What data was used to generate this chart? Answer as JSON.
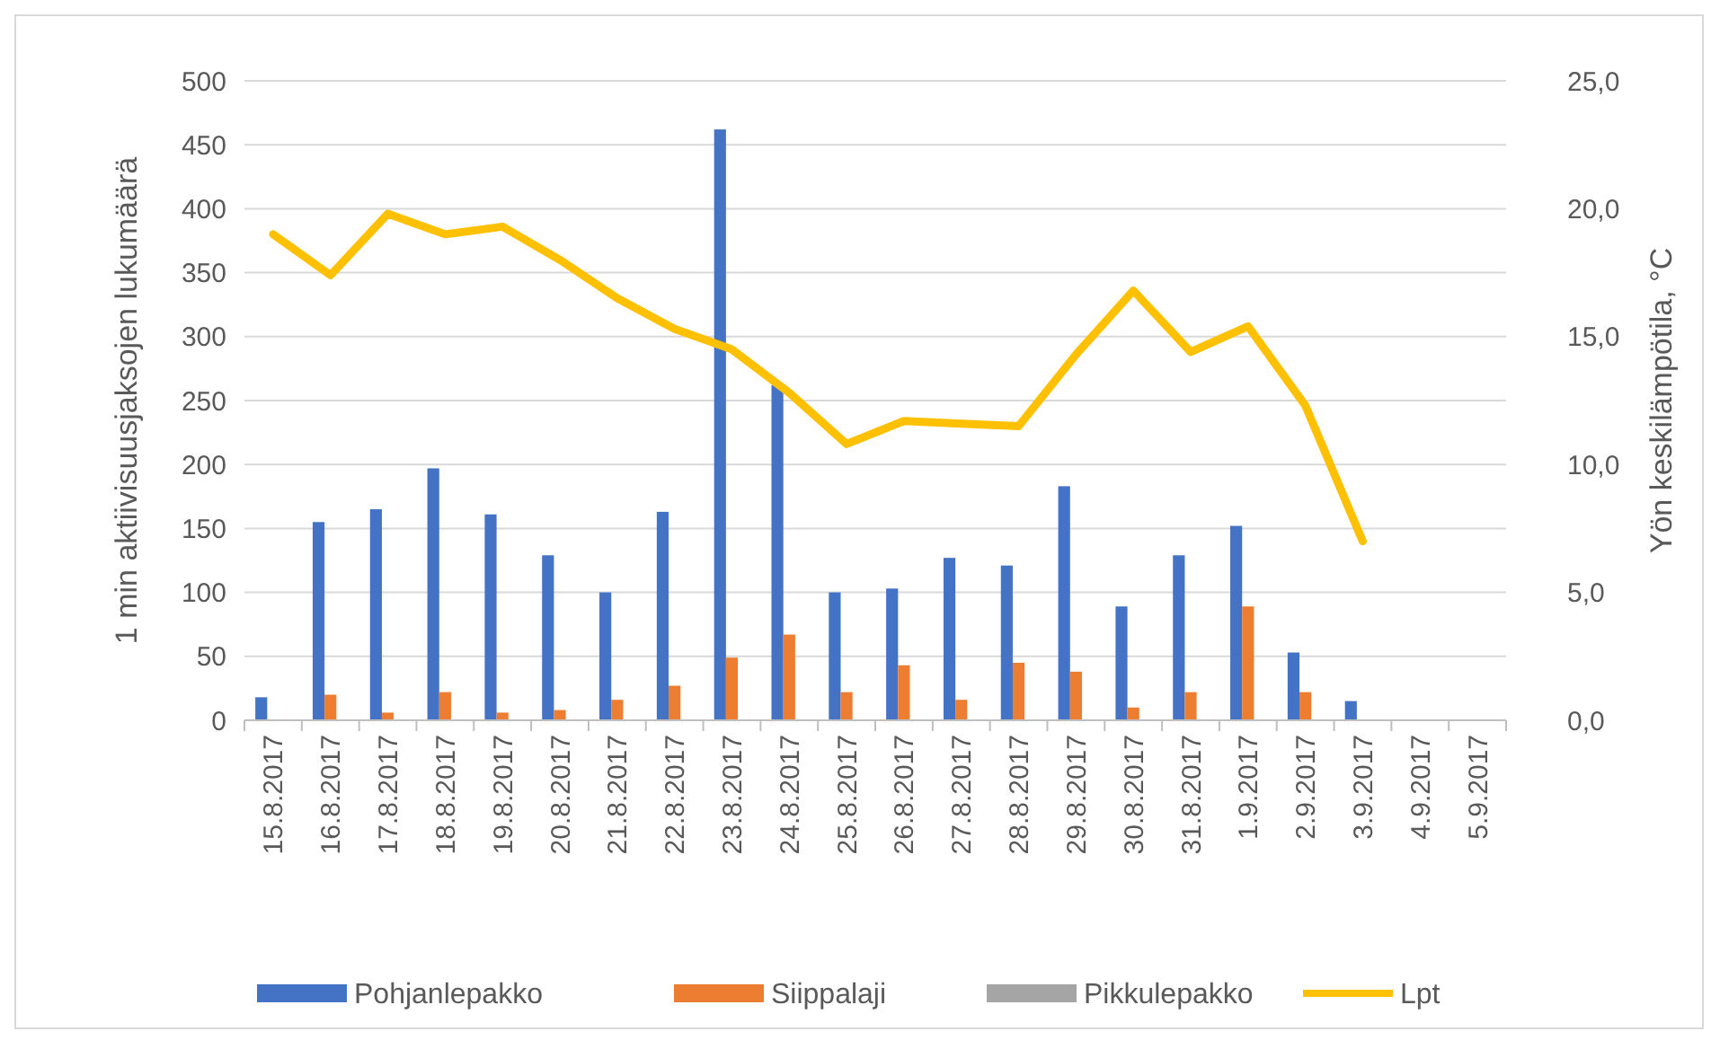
{
  "chart_data": {
    "type": "bar",
    "ylabel": "1 min aktiivisuusjaksojen lukumäärä",
    "y2label": "Yön keskilämpötila, °C",
    "categories": [
      "15.8.2017",
      "16.8.2017",
      "17.8.2017",
      "18.8.2017",
      "19.8.2017",
      "20.8.2017",
      "21.8.2017",
      "22.8.2017",
      "23.8.2017",
      "24.8.2017",
      "25.8.2017",
      "26.8.2017",
      "27.8.2017",
      "28.8.2017",
      "29.8.2017",
      "30.8.2017",
      "31.8.2017",
      "1.9.2017",
      "2.9.2017",
      "3.9.2017",
      "4.9.2017",
      "5.9.2017"
    ],
    "series": [
      {
        "name": "Pohjanlepakko",
        "color": "#4472c4",
        "values": [
          18,
          155,
          165,
          197,
          161,
          129,
          100,
          163,
          462,
          262,
          100,
          103,
          127,
          121,
          183,
          89,
          129,
          152,
          53,
          15,
          null,
          null
        ]
      },
      {
        "name": "Siippalaji",
        "color": "#ed7d31",
        "values": [
          0,
          20,
          6,
          22,
          6,
          8,
          16,
          27,
          49,
          67,
          22,
          43,
          16,
          45,
          38,
          10,
          22,
          89,
          22,
          0,
          null,
          null
        ]
      },
      {
        "name": "Pikkulepakko",
        "color": "#a5a5a5",
        "values": [
          0,
          0,
          0,
          0,
          0,
          0,
          0,
          0,
          0,
          0,
          0,
          0,
          0,
          0,
          0,
          0,
          0,
          0,
          0,
          0,
          null,
          null
        ]
      },
      {
        "name": "Lpt",
        "type": "line",
        "axis": "y2",
        "color": "#ffc000",
        "values": [
          19.0,
          17.4,
          19.8,
          19.0,
          19.3,
          18.0,
          16.5,
          15.3,
          14.5,
          12.8,
          10.8,
          11.7,
          11.6,
          11.5,
          14.3,
          16.8,
          14.4,
          15.4,
          12.3,
          7.0,
          null,
          null
        ]
      }
    ],
    "ylim": [
      0,
      500
    ],
    "yticks": [
      0,
      50,
      100,
      150,
      200,
      250,
      300,
      350,
      400,
      450,
      500
    ],
    "y2lim": [
      0,
      25
    ],
    "y2ticks": [
      {
        "value": 0,
        "label": "0,0"
      },
      {
        "value": 5,
        "label": "5,0"
      },
      {
        "value": 10,
        "label": "10,0"
      },
      {
        "value": 15,
        "label": "15,0"
      },
      {
        "value": 20,
        "label": "20,0"
      },
      {
        "value": 25,
        "label": "25,0"
      }
    ],
    "grid": "y",
    "legend": "bottom"
  }
}
